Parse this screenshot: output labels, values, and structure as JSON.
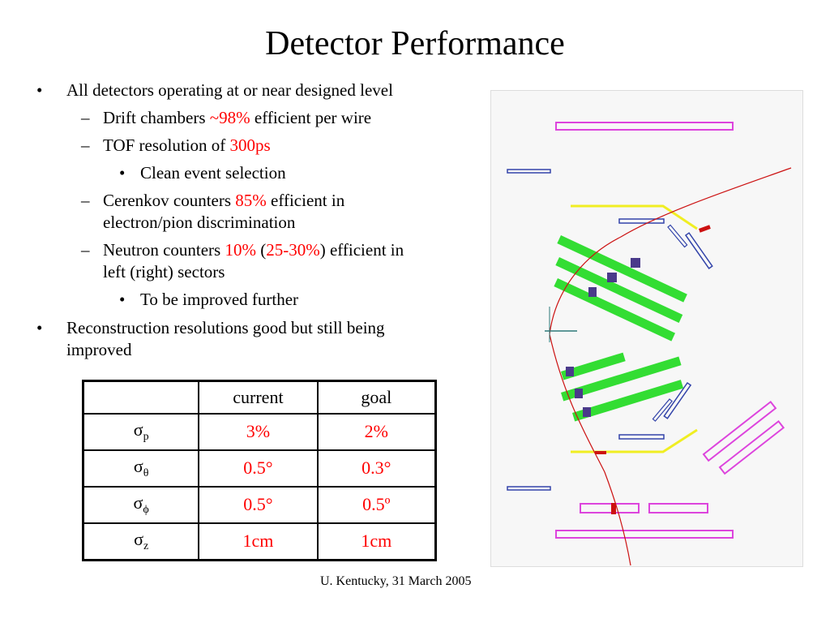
{
  "title": "Detector Performance",
  "bullets": {
    "b1": "All detectors operating at or near designed level",
    "b1_1_pre": "Drift chambers ",
    "b1_1_val": "~98%",
    "b1_1_post": " efficient per wire",
    "b1_2_pre": "TOF resolution of ",
    "b1_2_val": "300ps",
    "b1_2_1": "Clean event selection",
    "b1_3_pre": "Cerenkov counters ",
    "b1_3_val": "85%",
    "b1_3_post": " efficient in",
    "b1_3_line2": "electron/pion discrimination",
    "b1_4_pre": "Neutron counters ",
    "b1_4_val1": "10%",
    "b1_4_mid1": " (",
    "b1_4_val2": "25-30%",
    "b1_4_post": ") efficient in",
    "b1_4_line2": "left (right) sectors",
    "b1_4_1": "To be improved further",
    "b2_line1": "Reconstruction resolutions good but still being",
    "b2_line2": "improved"
  },
  "table": {
    "headers": [
      "",
      "current",
      "goal"
    ],
    "rows": [
      {
        "symbol": "σ",
        "sub": "p",
        "current": "3%",
        "goal": "2%"
      },
      {
        "symbol": "σ",
        "sub": "θ",
        "current": "0.5°",
        "goal": "0.3°"
      },
      {
        "symbol": "σ",
        "sub": "ϕ",
        "current": "0.5°",
        "goal": "0.5º"
      },
      {
        "symbol": "σ",
        "sub": "z",
        "current": "1cm",
        "goal": "1cm"
      }
    ]
  },
  "footer": "U. Kentucky, 31 March 2005",
  "colors": {
    "highlight": "#ff0000",
    "track": "#cc1111",
    "chamber": "#33dd33",
    "counter": "#dd44dd",
    "cerenkov": "#f0ee22",
    "tof": "#3344aa"
  }
}
